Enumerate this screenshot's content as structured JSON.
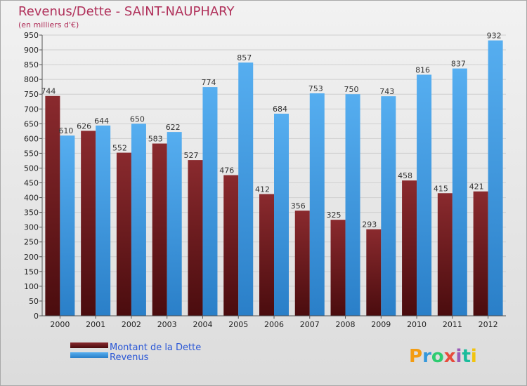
{
  "chart_data": {
    "type": "bar",
    "title": "Revenus/Dette - SAINT-NAUPHARY",
    "subtitle": "(en milliers d'€)",
    "categories": [
      "2000",
      "2001",
      "2002",
      "2003",
      "2004",
      "2005",
      "2006",
      "2007",
      "2008",
      "2009",
      "2010",
      "2011",
      "2012"
    ],
    "series": [
      {
        "name": "Montant de la Dette",
        "color": "#7a1f22",
        "values": [
          744,
          626,
          552,
          583,
          527,
          476,
          412,
          356,
          325,
          293,
          458,
          415,
          421
        ]
      },
      {
        "name": "Revenus",
        "color": "#3d9ae0",
        "values": [
          610,
          644,
          650,
          622,
          774,
          857,
          684,
          753,
          750,
          743,
          816,
          837,
          932
        ]
      }
    ],
    "ylim": [
      0,
      950
    ],
    "ytick_step": 50,
    "grid": true,
    "legend": "bottom-left"
  },
  "watermark": {
    "text": "Proxiti",
    "letters": [
      "P",
      "r",
      "o",
      "x",
      "i",
      "t",
      "i"
    ],
    "colors": [
      "#f39c12",
      "#3498db",
      "#2ecc71",
      "#e74c3c",
      "#9b59b6",
      "#1abc9c",
      "#f1c40f"
    ]
  }
}
